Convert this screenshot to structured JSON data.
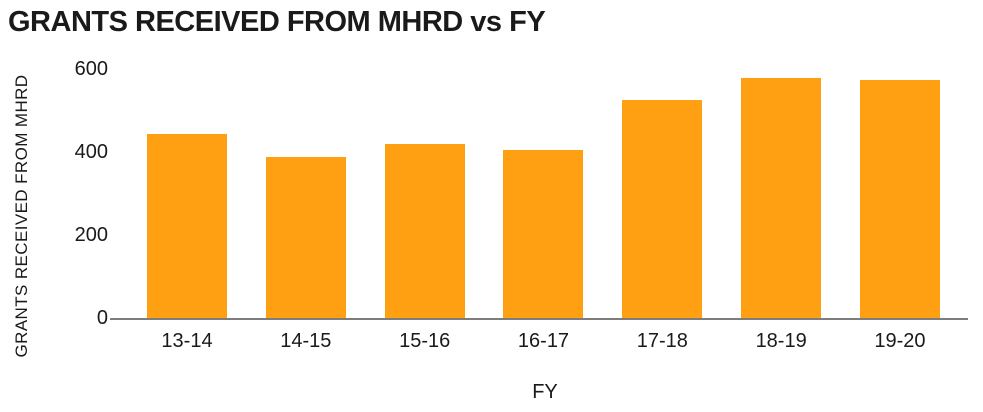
{
  "chart_data": {
    "type": "bar",
    "title": "GRANTS RECEIVED FROM MHRD vs FY",
    "xlabel": "FY",
    "ylabel": "GRANTS RECEIVED FROM MHRD",
    "categories": [
      "13-14",
      "14-15",
      "15-16",
      "16-17",
      "17-18",
      "18-19",
      "19-20"
    ],
    "values": [
      445,
      390,
      420,
      405,
      525,
      580,
      575
    ],
    "ylim": [
      0,
      600
    ],
    "yticks": [
      0,
      200,
      400,
      600
    ],
    "grid": false,
    "legend_position": "none",
    "colors": {
      "bar": "#FFA013",
      "axis_line": "#7d7d7d",
      "text": "#1a1a1a",
      "background": "#ffffff"
    }
  }
}
